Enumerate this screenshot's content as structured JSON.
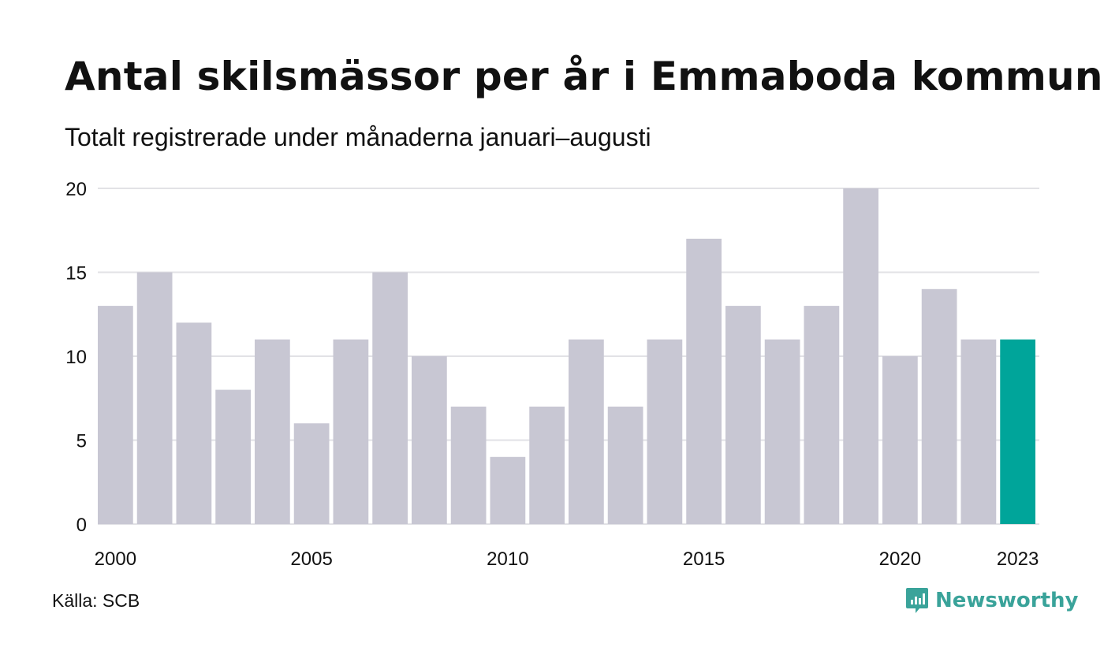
{
  "header": {
    "title": "Antal skilsmässor per år i Emmaboda kommun",
    "subtitle": "Totalt registrerade under månaderna januari–augusti"
  },
  "footer": {
    "source": "Källa: SCB",
    "brand": "Newsworthy",
    "brand_icon": "newsworthy-logo-icon"
  },
  "colors": {
    "bar": "#c8c7d3",
    "highlight": "#00a59a",
    "grid": "#e2e2e6",
    "brand": "#3aa39a"
  },
  "chart_data": {
    "type": "bar",
    "title": "Antal skilsmässor per år i Emmaboda kommun",
    "subtitle": "Totalt registrerade under månaderna januari–augusti",
    "xlabel": "",
    "ylabel": "",
    "categories": [
      "2000",
      "2001",
      "2002",
      "2003",
      "2004",
      "2005",
      "2006",
      "2007",
      "2008",
      "2009",
      "2010",
      "2011",
      "2012",
      "2013",
      "2014",
      "2015",
      "2016",
      "2017",
      "2018",
      "2019",
      "2020",
      "2021",
      "2022",
      "2023"
    ],
    "values": [
      13,
      15,
      12,
      8,
      11,
      6,
      11,
      15,
      10,
      7,
      4,
      7,
      11,
      7,
      11,
      17,
      13,
      11,
      13,
      20,
      10,
      14,
      11,
      11
    ],
    "highlight_category": "2023",
    "x_tick_labels": [
      "2000",
      "2005",
      "2010",
      "2015",
      "2020",
      "2023"
    ],
    "y_ticks": [
      0,
      5,
      10,
      15,
      20
    ],
    "ylim": [
      0,
      20
    ],
    "grid": true,
    "legend": "none"
  }
}
